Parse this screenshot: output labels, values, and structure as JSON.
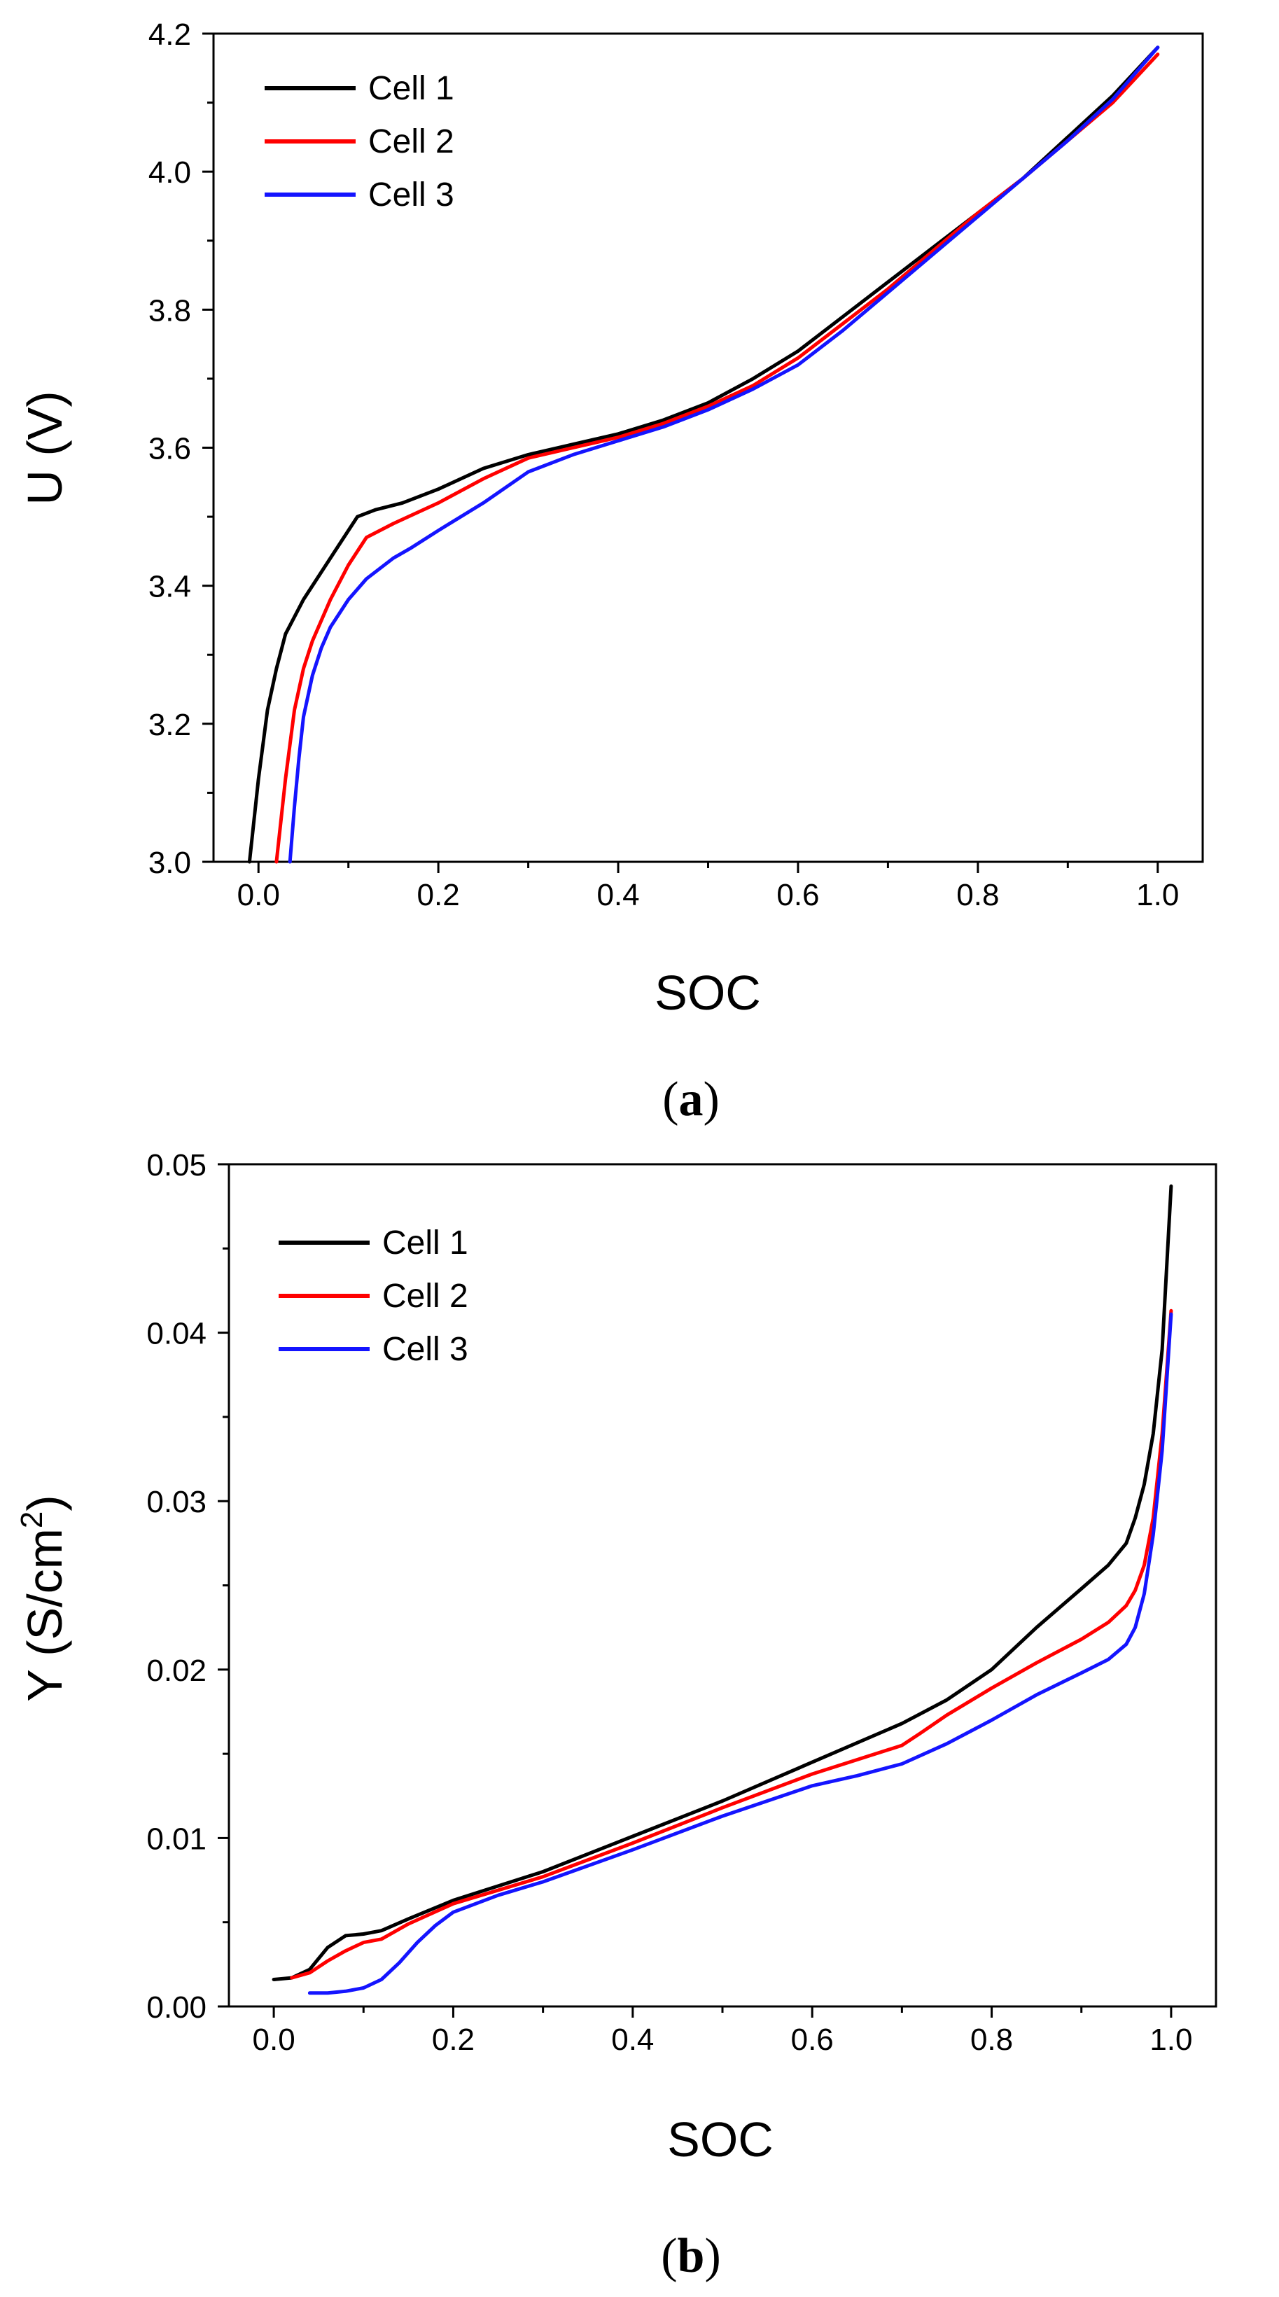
{
  "chart_data": [
    {
      "type": "line",
      "panel": "a",
      "xlabel": "SOC",
      "ylabel": "U (V)",
      "xlim": [
        -0.05,
        1.05
      ],
      "ylim": [
        3.0,
        4.2
      ],
      "xticks": [
        0.0,
        0.2,
        0.4,
        0.6,
        0.8,
        1.0
      ],
      "xtick_labels": [
        "0.0",
        "0.2",
        "0.4",
        "0.6",
        "0.8",
        "1.0"
      ],
      "yticks": [
        3.0,
        3.2,
        3.4,
        3.6,
        3.8,
        4.0,
        4.2
      ],
      "ytick_labels": [
        "3.0",
        "3.2",
        "3.4",
        "3.6",
        "3.8",
        "4.0",
        "4.2"
      ],
      "legend": "top-left",
      "series": [
        {
          "name": "Cell 1",
          "color": "#000000",
          "x": [
            -0.01,
            0.0,
            0.01,
            0.02,
            0.03,
            0.05,
            0.07,
            0.09,
            0.11,
            0.13,
            0.16,
            0.2,
            0.25,
            0.3,
            0.35,
            0.4,
            0.45,
            0.5,
            0.55,
            0.6,
            0.65,
            0.7,
            0.75,
            0.8,
            0.85,
            0.9,
            0.95,
            1.0
          ],
          "y": [
            3.0,
            3.12,
            3.22,
            3.28,
            3.33,
            3.38,
            3.42,
            3.46,
            3.5,
            3.51,
            3.52,
            3.54,
            3.57,
            3.59,
            3.605,
            3.62,
            3.64,
            3.665,
            3.7,
            3.74,
            3.79,
            3.84,
            3.89,
            3.94,
            3.99,
            4.05,
            4.11,
            4.18
          ]
        },
        {
          "name": "Cell 2",
          "color": "#ff0000",
          "x": [
            0.02,
            0.03,
            0.04,
            0.05,
            0.06,
            0.08,
            0.1,
            0.12,
            0.15,
            0.2,
            0.25,
            0.3,
            0.35,
            0.4,
            0.45,
            0.5,
            0.55,
            0.6,
            0.65,
            0.7,
            0.75,
            0.8,
            0.85,
            0.9,
            0.95,
            1.0
          ],
          "y": [
            3.0,
            3.12,
            3.22,
            3.28,
            3.32,
            3.38,
            3.43,
            3.47,
            3.49,
            3.52,
            3.555,
            3.585,
            3.6,
            3.615,
            3.635,
            3.66,
            3.69,
            3.73,
            3.78,
            3.83,
            3.885,
            3.94,
            3.99,
            4.045,
            4.1,
            4.17
          ]
        },
        {
          "name": "Cell 3",
          "color": "#1414ff",
          "x": [
            0.035,
            0.04,
            0.045,
            0.05,
            0.06,
            0.07,
            0.08,
            0.1,
            0.12,
            0.15,
            0.17,
            0.2,
            0.25,
            0.3,
            0.35,
            0.4,
            0.45,
            0.5,
            0.55,
            0.6,
            0.65,
            0.7,
            0.75,
            0.8,
            0.85,
            0.9,
            0.95,
            1.0
          ],
          "y": [
            3.0,
            3.08,
            3.15,
            3.21,
            3.27,
            3.31,
            3.34,
            3.38,
            3.41,
            3.44,
            3.455,
            3.48,
            3.52,
            3.565,
            3.59,
            3.61,
            3.63,
            3.655,
            3.685,
            3.72,
            3.77,
            3.825,
            3.88,
            3.935,
            3.99,
            4.045,
            4.105,
            4.18
          ]
        }
      ]
    },
    {
      "type": "line",
      "panel": "b",
      "xlabel": "SOC",
      "ylabel_prefix": "Y (S/cm",
      "ylabel_sup": "2",
      "ylabel_suffix": ")",
      "xlim": [
        -0.05,
        1.05
      ],
      "ylim": [
        0.0,
        0.05
      ],
      "xticks": [
        0.0,
        0.2,
        0.4,
        0.6,
        0.8,
        1.0
      ],
      "xtick_labels": [
        "0.0",
        "0.2",
        "0.4",
        "0.6",
        "0.8",
        "1.0"
      ],
      "yticks": [
        0.0,
        0.01,
        0.02,
        0.03,
        0.04,
        0.05
      ],
      "ytick_labels": [
        "0.00",
        "0.01",
        "0.02",
        "0.03",
        "0.04",
        "0.05"
      ],
      "legend": "top-left",
      "series": [
        {
          "name": "Cell 1",
          "color": "#000000",
          "x": [
            0.0,
            0.02,
            0.04,
            0.06,
            0.08,
            0.1,
            0.12,
            0.15,
            0.2,
            0.3,
            0.4,
            0.5,
            0.6,
            0.7,
            0.75,
            0.8,
            0.85,
            0.9,
            0.93,
            0.95,
            0.96,
            0.97,
            0.98,
            0.99,
            1.0
          ],
          "y": [
            0.0016,
            0.0017,
            0.0022,
            0.0035,
            0.0042,
            0.0043,
            0.0045,
            0.0052,
            0.0063,
            0.008,
            0.0101,
            0.0122,
            0.0145,
            0.0168,
            0.0182,
            0.02,
            0.0225,
            0.0248,
            0.0262,
            0.0275,
            0.029,
            0.031,
            0.034,
            0.039,
            0.0487
          ]
        },
        {
          "name": "Cell 2",
          "color": "#ff0000",
          "x": [
            0.02,
            0.04,
            0.06,
            0.08,
            0.1,
            0.12,
            0.15,
            0.2,
            0.3,
            0.4,
            0.5,
            0.6,
            0.7,
            0.72,
            0.75,
            0.8,
            0.85,
            0.9,
            0.93,
            0.95,
            0.96,
            0.97,
            0.98,
            0.99,
            1.0
          ],
          "y": [
            0.0017,
            0.002,
            0.0027,
            0.0033,
            0.0038,
            0.004,
            0.0049,
            0.0061,
            0.0077,
            0.0097,
            0.0118,
            0.0138,
            0.0155,
            0.0162,
            0.0173,
            0.0189,
            0.0204,
            0.0218,
            0.0228,
            0.0238,
            0.0247,
            0.0262,
            0.029,
            0.034,
            0.0413
          ]
        },
        {
          "name": "Cell 3",
          "color": "#1414ff",
          "x": [
            0.04,
            0.06,
            0.08,
            0.1,
            0.12,
            0.14,
            0.16,
            0.18,
            0.2,
            0.25,
            0.3,
            0.4,
            0.5,
            0.6,
            0.65,
            0.7,
            0.75,
            0.8,
            0.85,
            0.9,
            0.93,
            0.95,
            0.96,
            0.97,
            0.98,
            0.99,
            1.0
          ],
          "y": [
            0.0008,
            0.0008,
            0.0009,
            0.0011,
            0.0016,
            0.0026,
            0.0038,
            0.0048,
            0.0056,
            0.0066,
            0.0074,
            0.0093,
            0.0113,
            0.0131,
            0.0137,
            0.0144,
            0.0156,
            0.017,
            0.0185,
            0.0198,
            0.0206,
            0.0215,
            0.0225,
            0.0245,
            0.028,
            0.033,
            0.0411
          ]
        }
      ]
    }
  ],
  "panel_labels": {
    "a_open": "(",
    "a_letter": "a",
    "a_close": ")",
    "b_open": "(",
    "b_letter": "b",
    "b_close": ")"
  }
}
